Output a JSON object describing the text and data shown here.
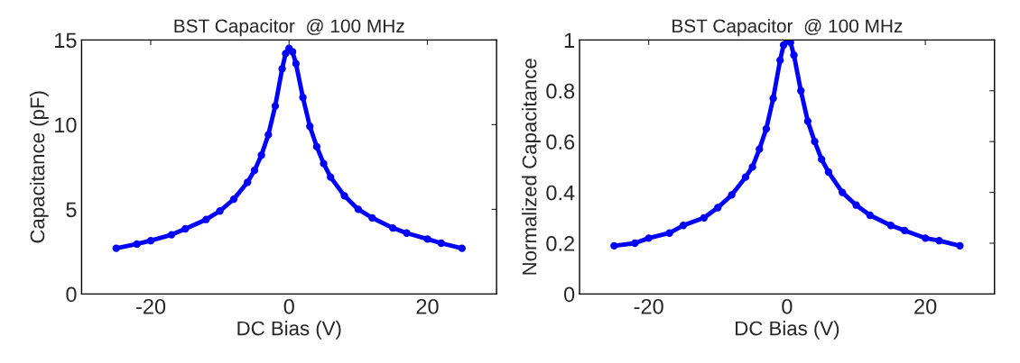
{
  "chart_data": [
    {
      "type": "line",
      "title": "BST Capacitor  @ 100 MHz",
      "xlabel": "DC Bias (V)",
      "ylabel": "Capacitance (pF)",
      "xlim": [
        -30,
        30
      ],
      "xticks": [
        -20,
        0,
        20
      ],
      "ylim": [
        0,
        15
      ],
      "yticks": [
        0,
        5,
        10,
        15
      ],
      "grid": false,
      "marker": "circle",
      "line_style": "solid",
      "series": [
        {
          "color": "#0000ff",
          "x": [
            -25,
            -22,
            -20,
            -17,
            -15,
            -12,
            -10,
            -8,
            -6,
            -5,
            -4,
            -3,
            -2,
            -1,
            -0.5,
            0,
            0.5,
            1,
            2,
            3,
            4,
            5,
            6,
            8,
            10,
            12,
            15,
            17,
            20,
            22,
            25
          ],
          "values": [
            2.7,
            2.95,
            3.15,
            3.5,
            3.85,
            4.4,
            4.9,
            5.6,
            6.6,
            7.3,
            8.2,
            9.4,
            11.1,
            13.3,
            14.2,
            14.5,
            14.3,
            13.6,
            11.6,
            9.9,
            8.7,
            7.7,
            6.9,
            5.8,
            5.0,
            4.5,
            3.9,
            3.6,
            3.25,
            3.0,
            2.7
          ]
        }
      ]
    },
    {
      "type": "line",
      "title": "BST Capacitor  @ 100 MHz",
      "xlabel": "DC Bias (V)",
      "ylabel": "Normalized Capacitance",
      "xlim": [
        -30,
        30
      ],
      "xticks": [
        -20,
        0,
        20
      ],
      "ylim": [
        0,
        1
      ],
      "yticks": [
        0,
        0.2,
        0.4,
        0.6,
        0.8,
        1
      ],
      "grid": false,
      "marker": "circle",
      "line_style": "solid",
      "series": [
        {
          "color": "#0000ff",
          "x": [
            -25,
            -22,
            -20,
            -17,
            -15,
            -12,
            -10,
            -8,
            -6,
            -5,
            -4,
            -3,
            -2,
            -1,
            -0.5,
            0,
            0.5,
            1,
            2,
            3,
            4,
            5,
            6,
            8,
            10,
            12,
            15,
            17,
            20,
            22,
            25
          ],
          "values": [
            0.19,
            0.2,
            0.22,
            0.24,
            0.27,
            0.3,
            0.34,
            0.39,
            0.46,
            0.5,
            0.57,
            0.65,
            0.77,
            0.92,
            0.98,
            1.0,
            0.99,
            0.94,
            0.8,
            0.68,
            0.6,
            0.53,
            0.48,
            0.4,
            0.35,
            0.31,
            0.27,
            0.25,
            0.22,
            0.21,
            0.19
          ]
        }
      ]
    }
  ]
}
